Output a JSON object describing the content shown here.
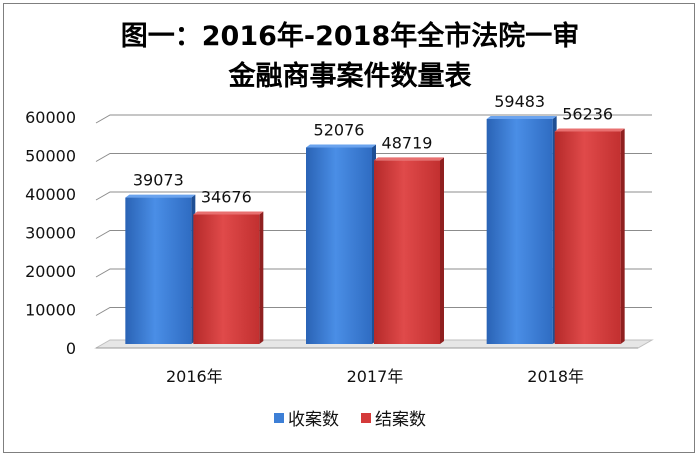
{
  "chart_data": {
    "type": "bar",
    "title_line1": "图一：2016年-2018年全市法院一审",
    "title_line2": "金融商事案件数量表",
    "categories": [
      "2016年",
      "2017年",
      "2018年"
    ],
    "series": [
      {
        "name": "收案数",
        "values": [
          39073,
          52076,
          59483
        ],
        "color": "#3d7fd6"
      },
      {
        "name": "结案数",
        "values": [
          34676,
          48719,
          56236
        ],
        "color": "#d43a3a"
      }
    ],
    "ylim": [
      0,
      60000
    ],
    "yticks": [
      "0",
      "10000",
      "20000",
      "30000",
      "40000",
      "50000",
      "60000"
    ],
    "grid": true,
    "legend_position": "bottom"
  }
}
